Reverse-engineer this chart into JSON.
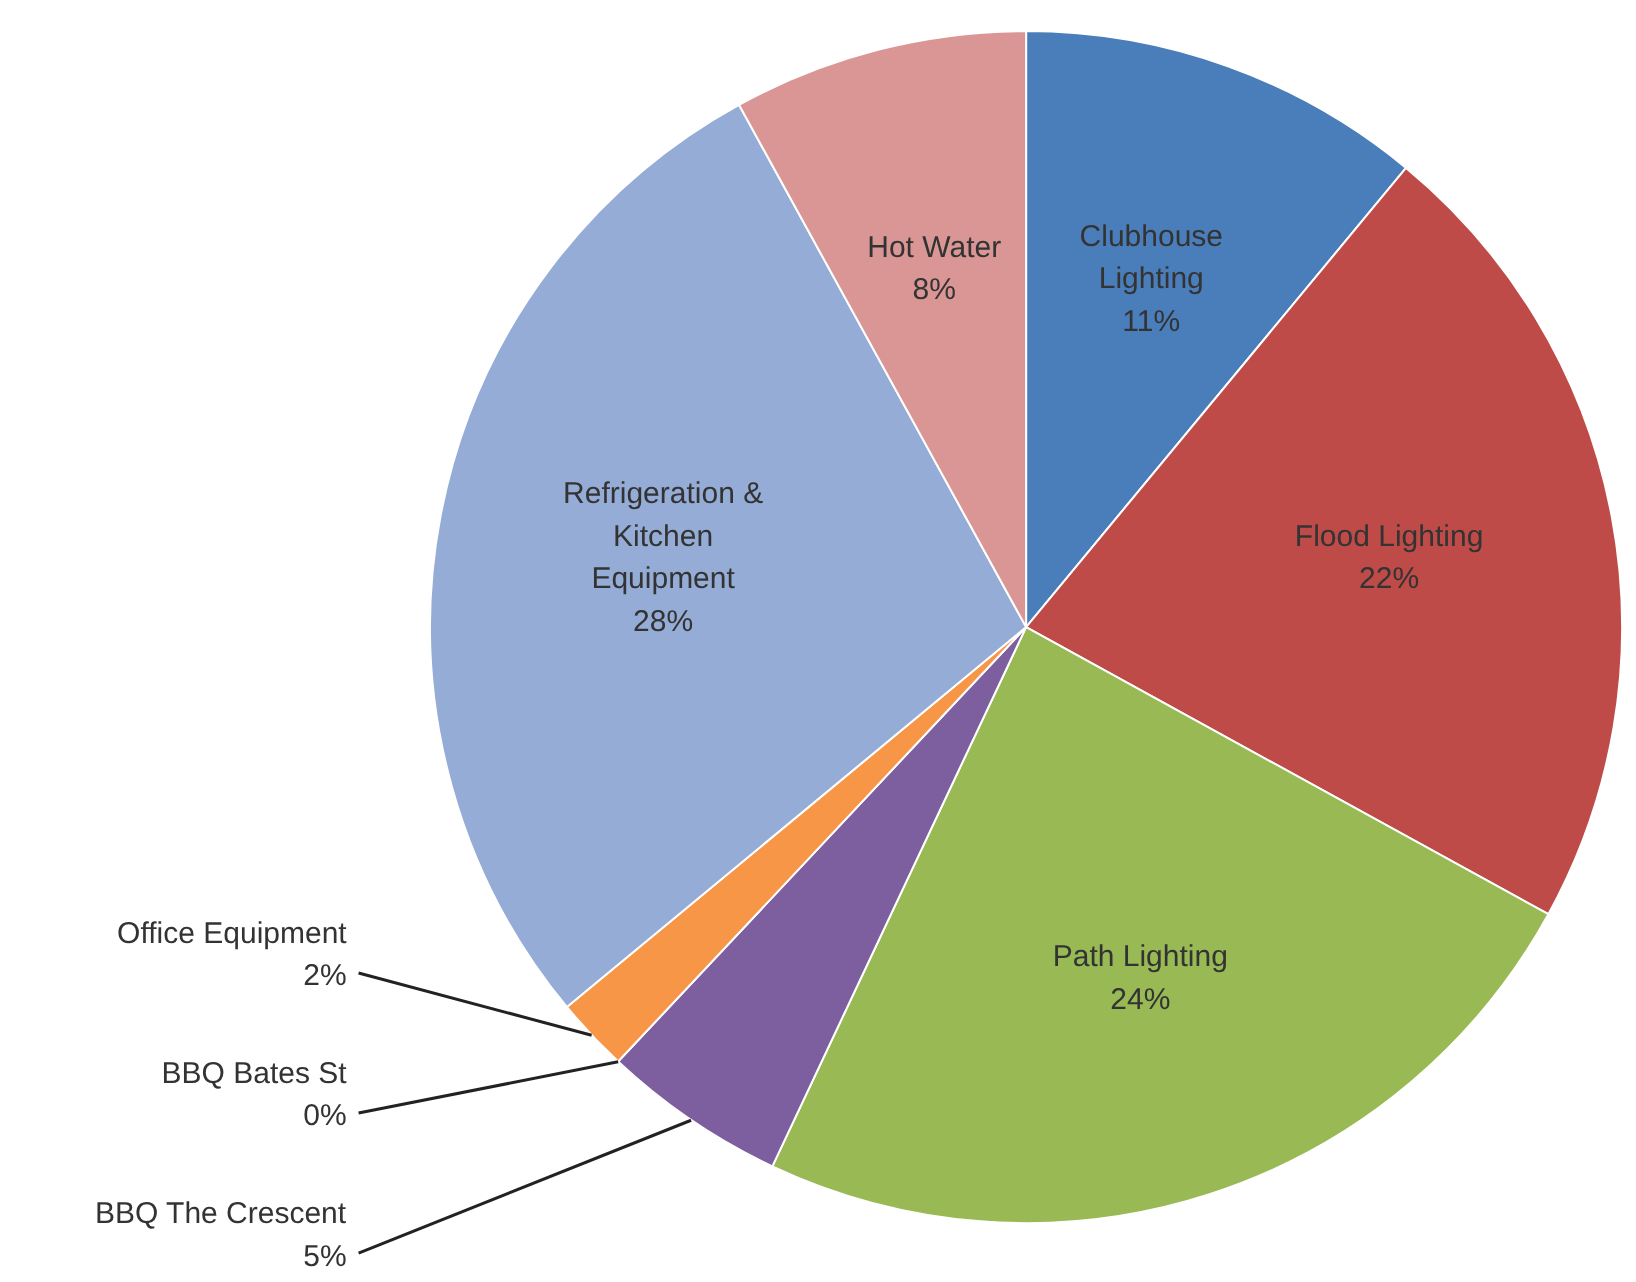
{
  "chart_data": {
    "type": "pie",
    "categories": [
      "Clubhouse Lighting",
      "Flood Lighting",
      "Path Lighting",
      "BBQ The Crescent",
      "BBQ Bates St",
      "Office Equipment",
      "Refrigeration & Kitchen Equipment",
      "Hot Water"
    ],
    "values": [
      11,
      22,
      24,
      5,
      0,
      2,
      28,
      8
    ],
    "colors": [
      "#4a7ebb",
      "#be4b48",
      "#98b954",
      "#7d5fa0",
      "#46aac5",
      "#f79646",
      "#94acd6",
      "#d99694"
    ],
    "value_labels": [
      "11%",
      "22%",
      "24%",
      "5%",
      "0%",
      "2%",
      "28%",
      "8%"
    ]
  }
}
